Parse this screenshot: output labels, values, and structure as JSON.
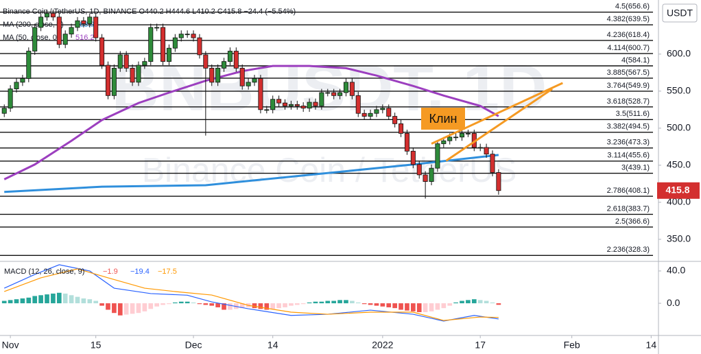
{
  "chart_data": [
    {
      "type": "candlestick",
      "title": "Binance Coin / TetherUS, 1D, BINANCE  O440.2  H444.6  L410.2  C415.8  −24.4 (−5.54%)",
      "watermark": "BNBUSDT, 1D",
      "watermark_sub": "Binance Coin / TetherUS",
      "currency_button": "USDT",
      "up_color": "#2e8b3a",
      "down_color": "#d32f2f",
      "xlim": [
        -1.7,
        106.2
      ],
      "xticks": [
        {
          "value": 0,
          "label": "Nov"
        },
        {
          "value": 14,
          "label": "15"
        },
        {
          "value": 30,
          "label": "Dec"
        },
        {
          "value": 43,
          "label": "14"
        },
        {
          "value": 61,
          "label": "2022"
        },
        {
          "value": 77,
          "label": "17"
        },
        {
          "value": 92,
          "label": "Feb"
        },
        {
          "value": 105,
          "label": "14"
        }
      ],
      "ylim": [
        323,
        673
      ],
      "yticks": [
        {
          "value": 350,
          "label": "350.0"
        },
        {
          "value": 400,
          "label": "400.0"
        },
        {
          "value": 450,
          "label": "450.0"
        },
        {
          "value": 500,
          "label": "500.0"
        },
        {
          "value": 550,
          "label": "550.0"
        },
        {
          "value": 600,
          "label": "600.0"
        }
      ],
      "x": [
        -1,
        0,
        1,
        2,
        3,
        4,
        5,
        6,
        7,
        8,
        9,
        10,
        11,
        12,
        13,
        14,
        15,
        16,
        17,
        18,
        19,
        20,
        21,
        22,
        23,
        24,
        25,
        26,
        27,
        28,
        29,
        30,
        31,
        32,
        33,
        34,
        35,
        36,
        37,
        38,
        39,
        40,
        41,
        42,
        43,
        44,
        45,
        46,
        47,
        48,
        49,
        50,
        51,
        52,
        53,
        54,
        55,
        56,
        57,
        58,
        59,
        60,
        61,
        62,
        63,
        64,
        65,
        66,
        67,
        68,
        69,
        70,
        71,
        72,
        73,
        74,
        75,
        76,
        77,
        78,
        79,
        80
      ],
      "open": [
        520,
        527,
        553,
        562,
        567,
        604,
        636,
        650,
        655,
        650,
        613,
        627,
        636,
        645,
        641,
        650,
        622,
        585,
        544,
        581,
        599,
        581,
        562,
        585,
        590,
        636,
        636,
        590,
        608,
        622,
        627,
        627,
        622,
        599,
        581,
        562,
        581,
        590,
        604,
        581,
        557,
        562,
        567,
        525,
        525,
        539,
        534,
        530,
        532,
        530,
        527,
        535,
        530,
        548,
        548,
        544,
        548,
        562,
        544,
        520,
        516,
        520,
        525,
        527,
        516,
        506,
        493,
        469,
        451,
        437,
        428,
        446,
        479,
        483,
        488,
        488,
        493,
        493,
        474,
        474,
        465,
        440.2
      ],
      "high": [
        532,
        558,
        567,
        572,
        609,
        641,
        655,
        660,
        660,
        655,
        632,
        641,
        650,
        650,
        655,
        655,
        627,
        590,
        586,
        604,
        604,
        586,
        590,
        595,
        641,
        641,
        641,
        613,
        627,
        632,
        632,
        632,
        627,
        604,
        586,
        586,
        595,
        609,
        609,
        586,
        567,
        572,
        572,
        530,
        544,
        544,
        539,
        537,
        537,
        535,
        540,
        540,
        553,
        553,
        553,
        553,
        567,
        567,
        549,
        525,
        525,
        530,
        532,
        532,
        521,
        511,
        498,
        474,
        456,
        442,
        451,
        484,
        488,
        493,
        493,
        498,
        498,
        498,
        479,
        479,
        470,
        444.6
      ],
      "low": [
        515,
        522,
        548,
        557,
        562,
        599,
        631,
        645,
        645,
        608,
        608,
        622,
        631,
        636,
        636,
        617,
        580,
        539,
        539,
        576,
        576,
        557,
        557,
        580,
        585,
        631,
        585,
        585,
        603,
        617,
        622,
        617,
        594,
        490,
        557,
        557,
        576,
        585,
        576,
        552,
        552,
        557,
        520,
        520,
        520,
        529,
        525,
        525,
        525,
        522,
        522,
        525,
        525,
        543,
        539,
        539,
        543,
        539,
        515,
        511,
        511,
        515,
        520,
        511,
        501,
        488,
        464,
        446,
        432,
        405,
        423,
        441,
        474,
        478,
        483,
        483,
        488,
        469,
        469,
        460,
        435,
        410.2
      ],
      "close": [
        527,
        553,
        562,
        567,
        604,
        636,
        650,
        655,
        650,
        613,
        627,
        636,
        645,
        641,
        650,
        622,
        585,
        544,
        581,
        599,
        581,
        562,
        585,
        590,
        636,
        636,
        590,
        608,
        622,
        627,
        627,
        622,
        599,
        581,
        562,
        581,
        590,
        604,
        581,
        557,
        562,
        567,
        525,
        525,
        539,
        534,
        530,
        532,
        530,
        527,
        535,
        530,
        548,
        548,
        544,
        548,
        562,
        544,
        520,
        516,
        520,
        525,
        527,
        516,
        506,
        493,
        469,
        451,
        437,
        428,
        446,
        479,
        483,
        488,
        488,
        493,
        493,
        474,
        474,
        465,
        440.2,
        415.8
      ],
      "series": [
        {
          "name": "MA (200, close, 0)",
          "color": "#2f8fdc",
          "x": [
            -1,
            15,
            32,
            49,
            66,
            80
          ],
          "values": [
            414,
            421,
            423,
            437,
            451,
            463.9
          ]
        },
        {
          "name": "MA (50, close, 0)",
          "color": "#9c3fbf",
          "x": [
            -1,
            4,
            10,
            15,
            21,
            26,
            32,
            38,
            43,
            49,
            55,
            60,
            66,
            71,
            77,
            80
          ],
          "values": [
            431,
            451,
            483,
            511,
            534,
            548,
            564,
            577,
            584,
            584,
            581,
            571,
            557,
            544,
            530,
            516.2
          ]
        }
      ],
      "fib_levels": [
        {
          "value": 656.6,
          "label": "4.5(656.6)"
        },
        {
          "value": 639.5,
          "label": "4.382(639.5)"
        },
        {
          "value": 618.4,
          "label": "4.236(618.4)"
        },
        {
          "value": 600.7,
          "label": "4.114(600.7)"
        },
        {
          "value": 584.1,
          "label": "4(584.1)"
        },
        {
          "value": 567.5,
          "label": "3.885(567.5)"
        },
        {
          "value": 549.9,
          "label": "3.764(549.9)"
        },
        {
          "value": 528.7,
          "label": "3.618(528.7)"
        },
        {
          "value": 511.6,
          "label": "3.5(511.6)"
        },
        {
          "value": 494.5,
          "label": "3.382(494.5)"
        },
        {
          "value": 473.3,
          "label": "3.236(473.3)"
        },
        {
          "value": 455.6,
          "label": "3.114(455.6)"
        },
        {
          "value": 439.1,
          "label": "3(439.1)"
        },
        {
          "value": 408.1,
          "label": "2.786(408.1)"
        },
        {
          "value": 383.7,
          "label": "2.618(383.7)"
        },
        {
          "value": 366.6,
          "label": "2.5(366.6)"
        },
        {
          "value": 328.3,
          "label": "2.236(328.3)"
        }
      ],
      "wedge": {
        "label": "Клин",
        "color": "#f59a23",
        "x1": [
          69,
          71.4
        ],
        "y1": [
          479,
          456
        ],
        "x2": [
          90.5,
          88.8
        ],
        "y2": [
          561,
          553
        ]
      }
    },
    {
      "type": "macd",
      "title": "MACD (12, 26, close, 9)",
      "legend_values": [
        "−1.9",
        "−19.4",
        "−17.5"
      ],
      "legend_colors": [
        "#ef5350",
        "#2962ff",
        "#ff9800"
      ],
      "ylim": [
        -39,
        51
      ],
      "yticks": [
        {
          "value": 40,
          "label": "40.0"
        },
        {
          "value": 0,
          "label": "0.0"
        }
      ],
      "histogram_colors": [
        "#26a69a",
        "#b2dfdb",
        "#ffcdd2",
        "#ef5350"
      ],
      "x": [
        -1,
        0,
        1,
        2,
        3,
        4,
        5,
        6,
        7,
        8,
        9,
        10,
        11,
        12,
        13,
        14,
        15,
        16,
        17,
        18,
        19,
        20,
        21,
        22,
        23,
        24,
        25,
        26,
        27,
        28,
        29,
        30,
        31,
        32,
        33,
        34,
        35,
        36,
        37,
        38,
        39,
        40,
        41,
        42,
        43,
        44,
        45,
        46,
        47,
        48,
        49,
        50,
        51,
        52,
        53,
        54,
        55,
        56,
        57,
        58,
        59,
        60,
        61,
        62,
        63,
        64,
        65,
        66,
        67,
        68,
        69,
        70,
        71,
        72,
        73,
        74,
        75,
        76,
        77,
        78,
        79,
        80
      ],
      "histogram": [
        3,
        4,
        5,
        6,
        7,
        9,
        10,
        11,
        12,
        13,
        12,
        10,
        8,
        6,
        5,
        3,
        -3,
        -8,
        -12,
        -15,
        -14,
        -13,
        -12,
        -10,
        -7,
        -4,
        -2,
        -1,
        1,
        2,
        2,
        1,
        -1,
        -2,
        -3,
        -5,
        -8,
        -8,
        -7,
        -6,
        -5,
        -6,
        -7,
        -8,
        -7,
        -6,
        -5,
        -3,
        -2,
        -1,
        1,
        2,
        2,
        3,
        3,
        4,
        4,
        3,
        1,
        -1,
        -2,
        -3,
        -4,
        -5,
        -6,
        -8,
        -9,
        -10,
        -11,
        -11,
        -10,
        -8,
        -6,
        -3,
        1,
        3,
        4,
        5,
        4,
        3,
        1,
        -1.9
      ],
      "series": [
        {
          "color": "#2962ff",
          "x": [
            -1,
            4,
            8,
            13,
            17,
            23,
            29,
            33,
            39,
            46,
            52,
            59,
            66,
            71,
            76,
            80
          ],
          "values": [
            18.7,
            35.7,
            47.7,
            40,
            18.7,
            12,
            10,
            1.7,
            -6.8,
            -15,
            -13.6,
            -8.5,
            -13.6,
            -22,
            -15,
            -19.4
          ]
        },
        {
          "color": "#ff9800",
          "x": [
            -1,
            5,
            11,
            16,
            22,
            27,
            33,
            39,
            46,
            52,
            59,
            66,
            71,
            77,
            80
          ],
          "values": [
            14.5,
            31.5,
            42.6,
            31.5,
            18.7,
            14.5,
            10.2,
            -2.6,
            -11,
            -13.6,
            -11,
            -11,
            -21.3,
            -17,
            -17.5
          ]
        }
      ]
    }
  ]
}
